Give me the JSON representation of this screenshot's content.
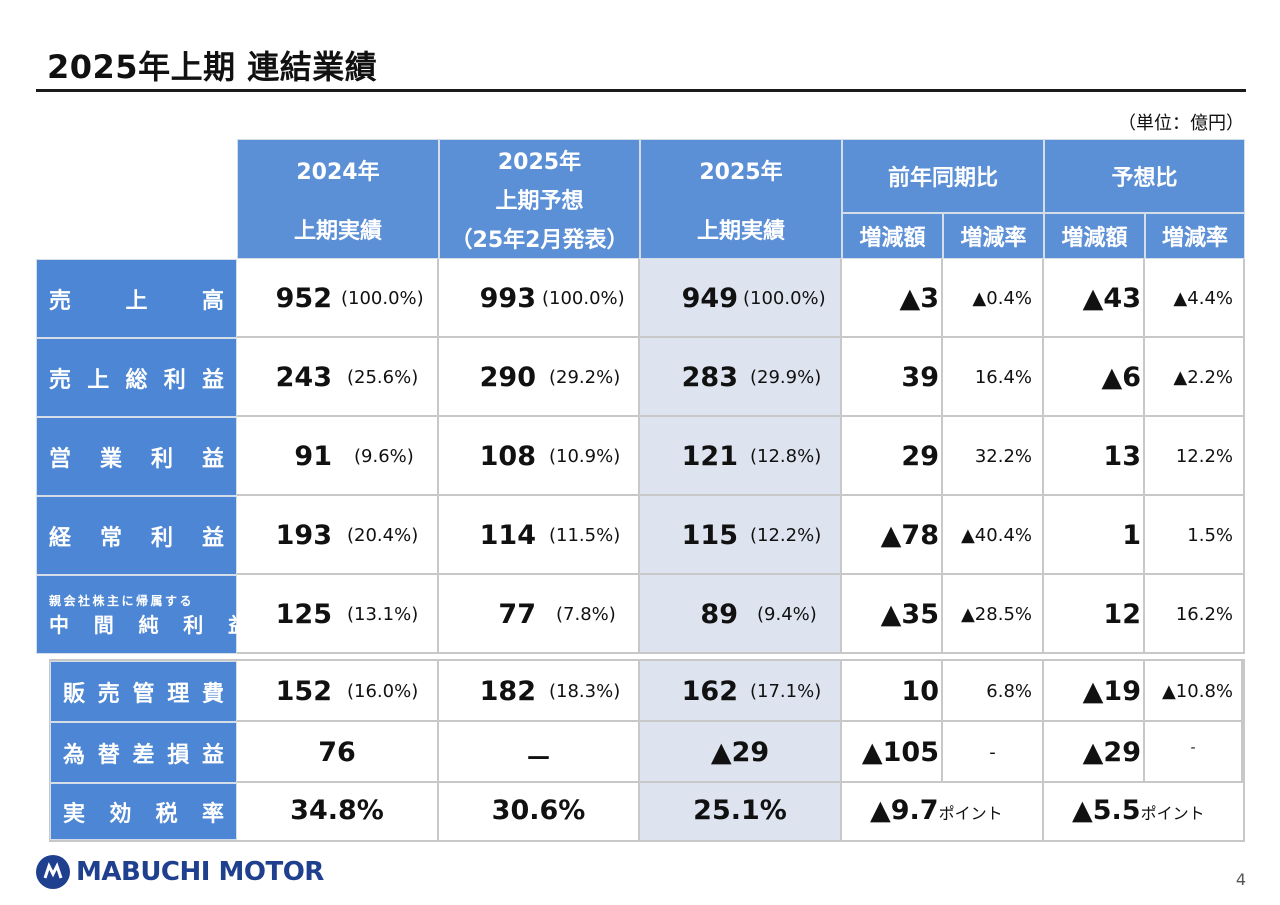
{
  "title": "2025年上期 連結業績",
  "unit": "（単位：億円）",
  "headers": {
    "col2024_line1": "2024年",
    "col2024_line2": "上期実績",
    "colForecast_line1": "2025年",
    "colForecast_line2": "上期予想",
    "colForecast_line3": "（25年2月発表）",
    "col2025_line1": "2025年",
    "col2025_line2": "上期実績",
    "yoy": "前年同期比",
    "vsForecast": "予想比",
    "diff": "増減額",
    "rate": "増減率"
  },
  "rows": [
    {
      "label": "売上高",
      "v2024": "952",
      "p2024": "(100.0%)",
      "vf": "993",
      "pf": "(100.0%)",
      "v2025": "949",
      "p2025": "(100.0%)",
      "yoyDiff": "▲3",
      "yoyRate": "▲0.4%",
      "fDiff": "▲43",
      "fRate": "▲4.4%"
    },
    {
      "label": "売上総利益",
      "v2024": "243",
      "p2024": "(25.6%)",
      "vf": "290",
      "pf": "(29.2%)",
      "v2025": "283",
      "p2025": "(29.9%)",
      "yoyDiff": "39",
      "yoyRate": "16.4%",
      "fDiff": "▲6",
      "fRate": "▲2.2%"
    },
    {
      "label": "営業利益",
      "v2024": "91",
      "p2024": "(9.6%)",
      "vf": "108",
      "pf": "(10.9%)",
      "v2025": "121",
      "p2025": "(12.8%)",
      "yoyDiff": "29",
      "yoyRate": "32.2%",
      "fDiff": "13",
      "fRate": "12.2%"
    },
    {
      "label": "経常利益",
      "v2024": "193",
      "p2024": "(20.4%)",
      "vf": "114",
      "pf": "(11.5%)",
      "v2025": "115",
      "p2025": "(12.2%)",
      "yoyDiff": "▲78",
      "yoyRate": "▲40.4%",
      "fDiff": "1",
      "fRate": "1.5%"
    },
    {
      "label_small": "親会社株主に帰属する",
      "label": "中間純利益",
      "v2024": "125",
      "p2024": "(13.1%)",
      "vf": "77",
      "pf": "(7.8%)",
      "v2025": "89",
      "p2025": "(9.4%)",
      "yoyDiff": "▲35",
      "yoyRate": "▲28.5%",
      "fDiff": "12",
      "fRate": "16.2%"
    },
    {
      "label": "販売管理費",
      "v2024": "152",
      "p2024": "(16.0%)",
      "vf": "182",
      "pf": "(18.3%)",
      "v2025": "162",
      "p2025": "(17.1%)",
      "yoyDiff": "10",
      "yoyRate": "6.8%",
      "fDiff": "▲19",
      "fRate": "▲10.8%"
    },
    {
      "label": "為替差損益",
      "v2024": "76",
      "vf": "－",
      "v2025": "▲29",
      "yoyDiff": "▲105",
      "yoyRate": "-",
      "fDiff": "▲29",
      "fRate": "-"
    },
    {
      "label": "実効税率",
      "v2024": "34.8%",
      "vf": "30.6%",
      "v2025": "25.1%",
      "yoyDiff": "▲9.7",
      "yoyUnit": "ポイント",
      "fDiff": "▲5.5",
      "fUnit": "ポイント"
    }
  ],
  "logo": "MABUCHI MOTOR",
  "page": "4",
  "colors": {
    "header": "#5b8fd6",
    "label": "#4d86d4",
    "shade": "#dde3ef",
    "brand": "#1f3f8f"
  }
}
